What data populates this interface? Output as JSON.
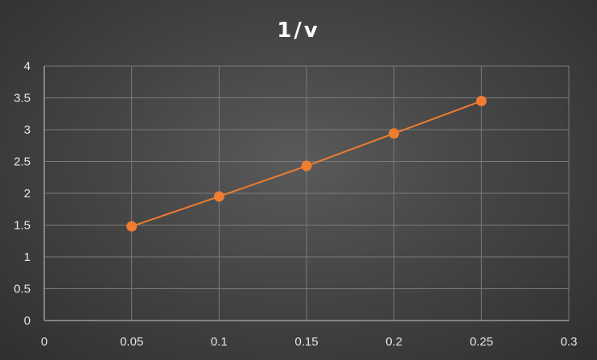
{
  "chart_data": {
    "type": "line",
    "title": "1/v",
    "xlabel": "",
    "ylabel": "",
    "x": [
      0.05,
      0.1,
      0.15,
      0.2,
      0.25
    ],
    "series": [
      {
        "values": [
          1.48,
          1.95,
          2.43,
          2.94,
          3.45
        ]
      }
    ],
    "xlim": [
      0,
      0.3
    ],
    "ylim": [
      0,
      4
    ],
    "x_ticks": [
      "0",
      "0.05",
      "0.1",
      "0.15",
      "0.2",
      "0.25",
      "0.3"
    ],
    "y_ticks": [
      "0",
      "0.5",
      "1",
      "1.5",
      "2",
      "2.5",
      "3",
      "3.5",
      "4"
    ],
    "grid": true,
    "legend": "none",
    "colors": {
      "series": "#f07c2f",
      "background": "#454545",
      "grid": "#7a7a7a"
    }
  }
}
